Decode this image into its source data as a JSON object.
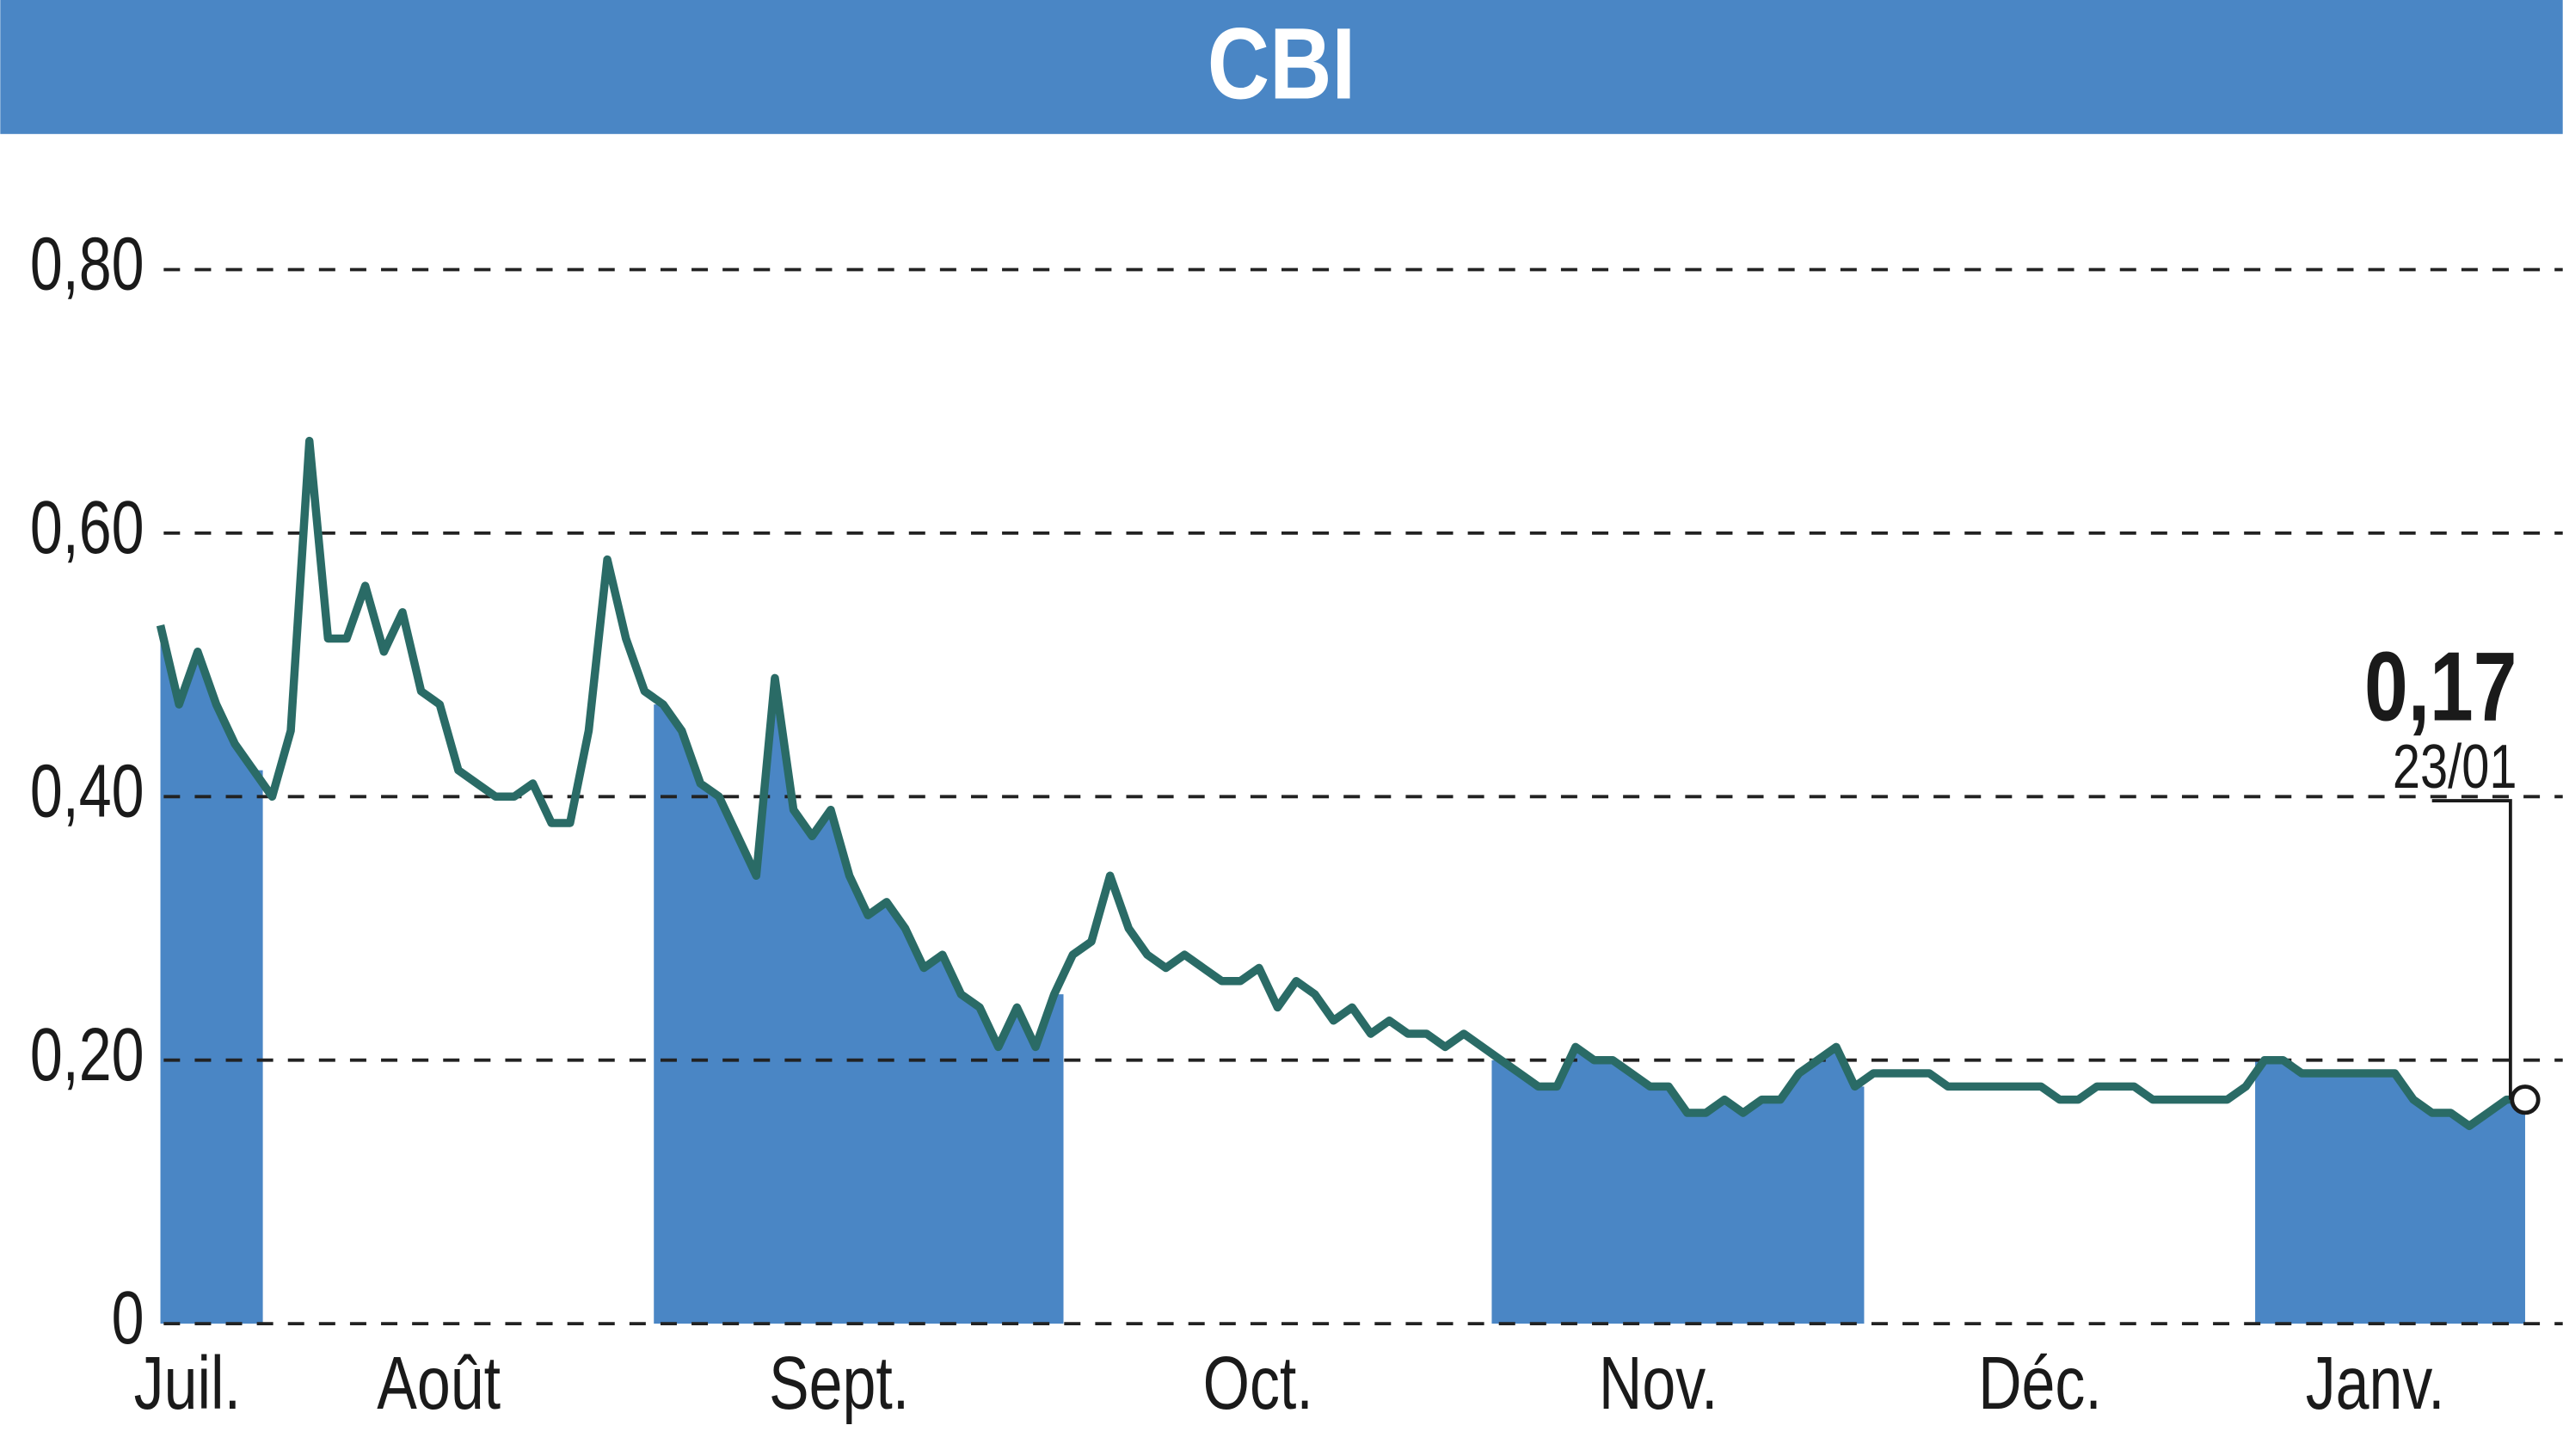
{
  "chart_data": {
    "type": "line",
    "title": "CBI",
    "categories": [
      "Juil.",
      null,
      null,
      null,
      null,
      null,
      "Août",
      null,
      null,
      null,
      null,
      null,
      null,
      null,
      null,
      null,
      null,
      null,
      null,
      null,
      null,
      null,
      null,
      null,
      null,
      null,
      null,
      "Sept.",
      null,
      null,
      null,
      null,
      null,
      null,
      null,
      null,
      null,
      null,
      null,
      null,
      null,
      null,
      null,
      null,
      null,
      null,
      null,
      null,
      null,
      "Oct.",
      null,
      null,
      null,
      null,
      null,
      null,
      null,
      null,
      null,
      null,
      null,
      null,
      null,
      null,
      null,
      null,
      null,
      null,
      null,
      null,
      null,
      null,
      "Nov.",
      null,
      null,
      null,
      null,
      null,
      null,
      null,
      null,
      null,
      null,
      null,
      null,
      null,
      null,
      null,
      null,
      null,
      null,
      null,
      "Déc.",
      null,
      null,
      null,
      null,
      null,
      null,
      null,
      null,
      null,
      null,
      null,
      null,
      null,
      null,
      null,
      null,
      null,
      null,
      null,
      null,
      "Janv.",
      null,
      null,
      null,
      null,
      null,
      null,
      null,
      null,
      null,
      null,
      null,
      null,
      null,
      null
    ],
    "values": [
      0.53,
      0.47,
      0.51,
      0.47,
      0.44,
      0.42,
      0.4,
      0.45,
      0.67,
      0.52,
      0.52,
      0.56,
      0.51,
      0.54,
      0.48,
      0.47,
      0.42,
      0.41,
      0.4,
      0.4,
      0.41,
      0.38,
      0.38,
      0.45,
      0.58,
      0.52,
      0.48,
      0.47,
      0.45,
      0.41,
      0.4,
      0.37,
      0.34,
      0.49,
      0.39,
      0.37,
      0.39,
      0.34,
      0.31,
      0.32,
      0.3,
      0.27,
      0.28,
      0.25,
      0.24,
      0.21,
      0.24,
      0.21,
      0.25,
      0.28,
      0.29,
      0.34,
      0.3,
      0.28,
      0.27,
      0.28,
      0.27,
      0.26,
      0.26,
      0.27,
      0.24,
      0.26,
      0.25,
      0.23,
      0.24,
      0.22,
      0.23,
      0.22,
      0.22,
      0.21,
      0.22,
      0.21,
      0.2,
      0.19,
      0.18,
      0.18,
      0.21,
      0.2,
      0.2,
      0.19,
      0.18,
      0.18,
      0.16,
      0.16,
      0.17,
      0.16,
      0.17,
      0.17,
      0.19,
      0.2,
      0.21,
      0.18,
      0.19,
      0.19,
      0.19,
      0.19,
      0.18,
      0.18,
      0.18,
      0.18,
      0.18,
      0.18,
      0.17,
      0.17,
      0.18,
      0.18,
      0.18,
      0.17,
      0.17,
      0.17,
      0.17,
      0.17,
      0.18,
      0.2,
      0.2,
      0.19,
      0.19,
      0.19,
      0.19,
      0.19,
      0.19,
      0.17,
      0.16,
      0.16,
      0.15,
      0.16,
      0.17,
      0.17
    ],
    "color": "#2a6b66",
    "area_color": "#4a86c5",
    "ylim": [
      0,
      0.8
    ],
    "yticks": [
      0,
      {
        "value": 0.2,
        "label": "0,20"
      },
      {
        "value": 0.4,
        "label": "0,40"
      },
      {
        "value": 0.6,
        "label": "0,60"
      },
      {
        "value": 0.8,
        "label": "0,80"
      }
    ],
    "grid": true,
    "annotations": [
      "0,17",
      "23/01"
    ]
  }
}
